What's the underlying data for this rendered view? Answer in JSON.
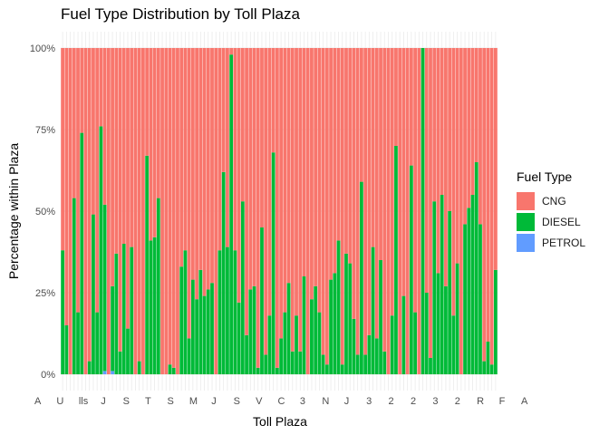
{
  "chart_data": {
    "type": "bar",
    "stacked": true,
    "normalized": true,
    "title": "Fuel Type Distribution by Toll Plaza",
    "xlabel": "Toll Plaza",
    "ylabel": "Percentage within Plaza",
    "y_ticks": [
      "0%",
      "25%",
      "50%",
      "75%",
      "100%"
    ],
    "ylim": [
      0,
      1
    ],
    "grid": true,
    "legend": {
      "title": "Fuel Type",
      "position": "right"
    },
    "series": [
      {
        "name": "CNG",
        "color": "#F8766D"
      },
      {
        "name": "DIESEL",
        "color": "#00BA38",
        "values": [
          0.38,
          0.15,
          0,
          0.54,
          0.19,
          0.74,
          0,
          0.04,
          0.49,
          0.19,
          0.76,
          0.51,
          0,
          0.26,
          0.37,
          0.07,
          0.4,
          0.14,
          0.39,
          0,
          0.04,
          0,
          0.67,
          0.41,
          0.42,
          0.54,
          0,
          0,
          0.03,
          0.02,
          0,
          0.33,
          0.38,
          0.11,
          0.29,
          0.23,
          0.32,
          0.24,
          0.26,
          0.28,
          0,
          0.38,
          0.62,
          0.39,
          0.98,
          0.38,
          0.22,
          0.53,
          0.12,
          0.26,
          0.27,
          0.02,
          0.45,
          0.06,
          0.18,
          0.68,
          0.02,
          0.11,
          0.19,
          0.28,
          0.07,
          0.18,
          0.07,
          0.3,
          0,
          0.23,
          0.27,
          0.19,
          0.06,
          0.03,
          0.29,
          0.31,
          0.41,
          0.03,
          0.37,
          0.34,
          0.17,
          0.06,
          0.59,
          0.06,
          0.12,
          0.39,
          0.11,
          0.35,
          0.07,
          0,
          0.18,
          0.7,
          0,
          0.24,
          0,
          0.64,
          0.19,
          0,
          1.0,
          0.25,
          0.05,
          0.53,
          0.31,
          0.55,
          0.27,
          0.5,
          0.18,
          0.34,
          0,
          0.46,
          0.51,
          0.55,
          0.65,
          0.46,
          0.04,
          0.1,
          0.03,
          0.32
        ]
      },
      {
        "name": "PETROL",
        "color": "#619CFF",
        "values": [
          0,
          0,
          0,
          0,
          0,
          0,
          0,
          0,
          0,
          0,
          0,
          0.01,
          0,
          0.01,
          0,
          0,
          0,
          0,
          0,
          0,
          0,
          0,
          0,
          0,
          0,
          0,
          0,
          0,
          0,
          0,
          0,
          0,
          0,
          0,
          0,
          0,
          0,
          0,
          0,
          0,
          0,
          0,
          0,
          0,
          0,
          0,
          0,
          0,
          0,
          0,
          0,
          0,
          0,
          0,
          0,
          0,
          0,
          0,
          0,
          0,
          0,
          0,
          0,
          0,
          0,
          0,
          0,
          0,
          0,
          0,
          0,
          0,
          0,
          0,
          0,
          0,
          0,
          0,
          0,
          0,
          0,
          0,
          0,
          0,
          0,
          0,
          0,
          0,
          0,
          0,
          0,
          0,
          0,
          0,
          0,
          0,
          0,
          0,
          0,
          0,
          0,
          0,
          0,
          0,
          0,
          0,
          0,
          0,
          0,
          0,
          0,
          0,
          0,
          0
        ]
      }
    ],
    "x_tick_label_fragments": [
      "A",
      "U",
      "lls",
      "J",
      "S",
      "T",
      "S",
      "M",
      "J",
      "S",
      "V",
      "C",
      "3",
      "N",
      "J",
      "3",
      "2",
      "2",
      "3",
      "2",
      "R",
      "F",
      "A"
    ]
  }
}
